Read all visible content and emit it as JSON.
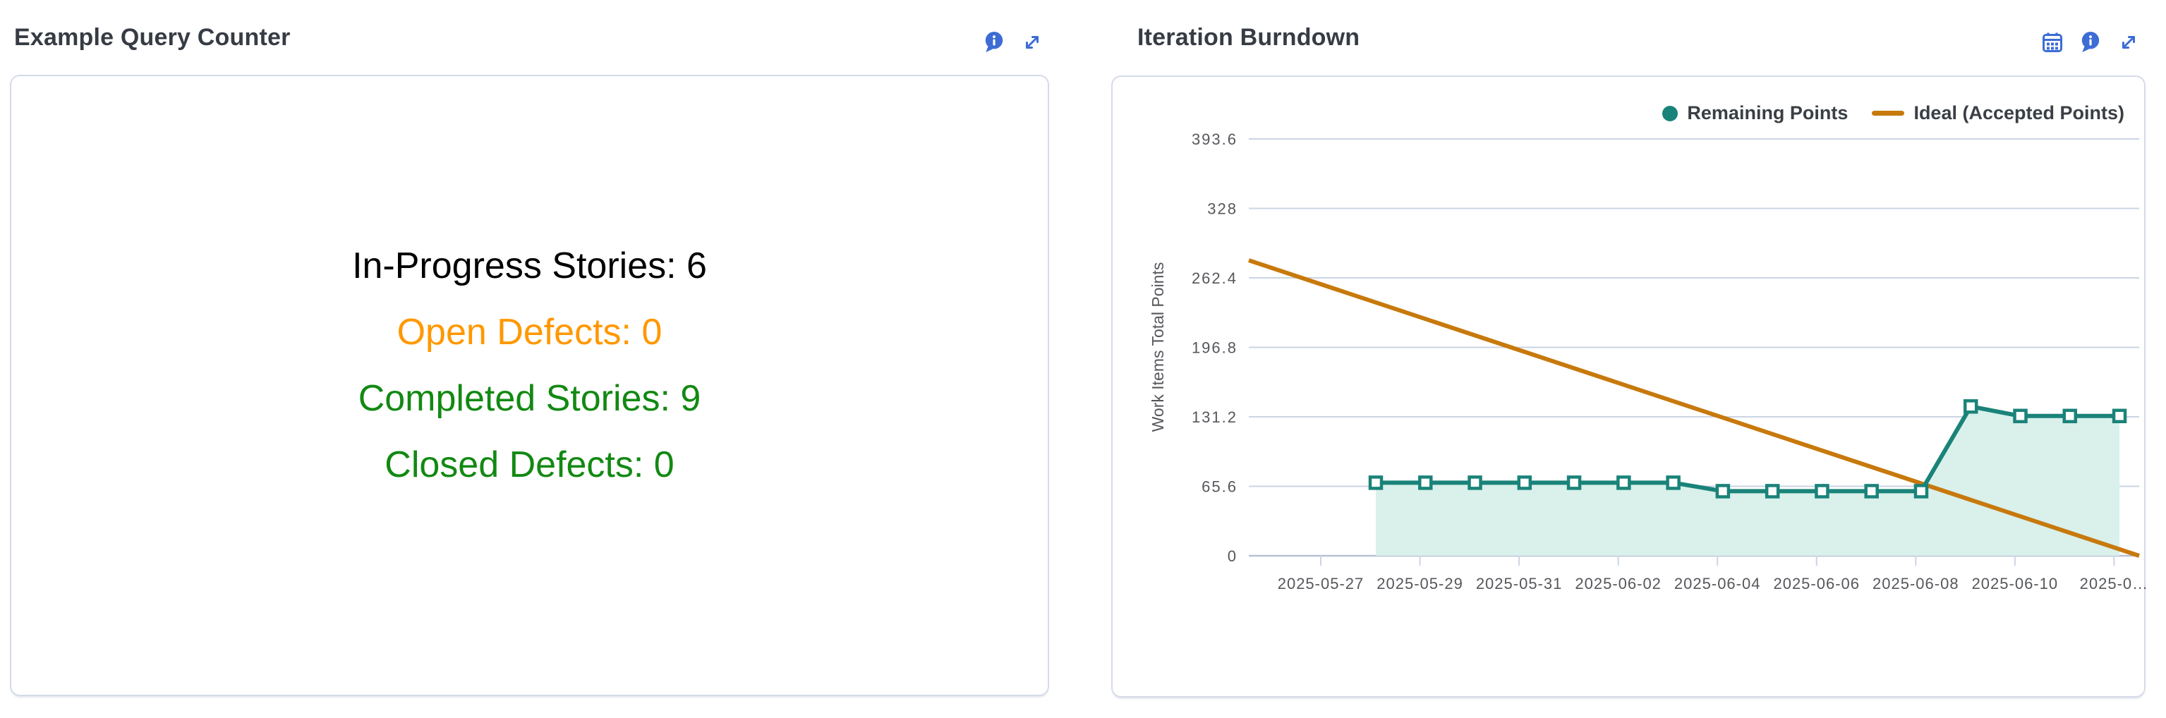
{
  "panels": {
    "counter": {
      "title": "Example Query Counter",
      "icons": {
        "info": "info-icon",
        "expand": "expand-icon"
      },
      "lines": [
        {
          "text": "In-Progress Stories: 6",
          "color": "#000000"
        },
        {
          "text": "Open Defects: 0",
          "color": "#FF9800"
        },
        {
          "text": "Completed Stories: 9",
          "color": "#128912"
        },
        {
          "text": "Closed Defects: 0",
          "color": "#128912"
        }
      ]
    },
    "burndown": {
      "title": "Iteration Burndown",
      "icons": {
        "calendar": "calendar-icon",
        "info": "info-icon",
        "expand": "expand-icon"
      }
    }
  },
  "chart_data": {
    "type": "line",
    "title": "Iteration Burndown",
    "xlabel": "",
    "ylabel": "Work Items Total Points",
    "ylim": [
      0,
      420
    ],
    "grid": "horizontal",
    "legend_position": "top-right",
    "legend": [
      "Remaining Points",
      "Ideal (Accepted Points)"
    ],
    "y_ticks": [
      0,
      65.6,
      131.2,
      196.8,
      262.4,
      328,
      393.6
    ],
    "x_tick_labels": [
      "2025-05-27",
      "2025-05-29",
      "2025-05-31",
      "2025-06-02",
      "2025-06-04",
      "2025-06-06",
      "2025-06-08",
      "2025-06-10",
      "2025-0…"
    ],
    "series": [
      {
        "name": "Remaining Points",
        "style": "line-with-area-fill",
        "marker": "open-square",
        "dates": [
          "2025-05-28",
          "2025-05-29",
          "2025-05-30",
          "2025-05-31",
          "2025-06-01",
          "2025-06-02",
          "2025-06-03",
          "2025-06-04",
          "2025-06-05",
          "2025-06-06",
          "2025-06-07",
          "2025-06-08",
          "2025-06-09",
          "2025-06-10",
          "2025-06-11",
          "2025-06-12"
        ],
        "values": [
          69,
          69,
          69,
          69,
          69,
          69,
          69,
          61,
          61,
          61,
          61,
          61,
          141,
          132,
          132,
          132
        ]
      },
      {
        "name": "Ideal (Accepted Points)",
        "style": "straight-line",
        "start_value": 279,
        "end_value": 0
      }
    ],
    "colors": {
      "remaining": "#1A8379",
      "remaining_fill": "#D9F0EB",
      "ideal": "#C7790C",
      "gridline": "#CBD4E4",
      "axis_line": "#B6C1D6",
      "axis_text": "#55575B",
      "icon_blue": "#3D6CD5"
    }
  }
}
